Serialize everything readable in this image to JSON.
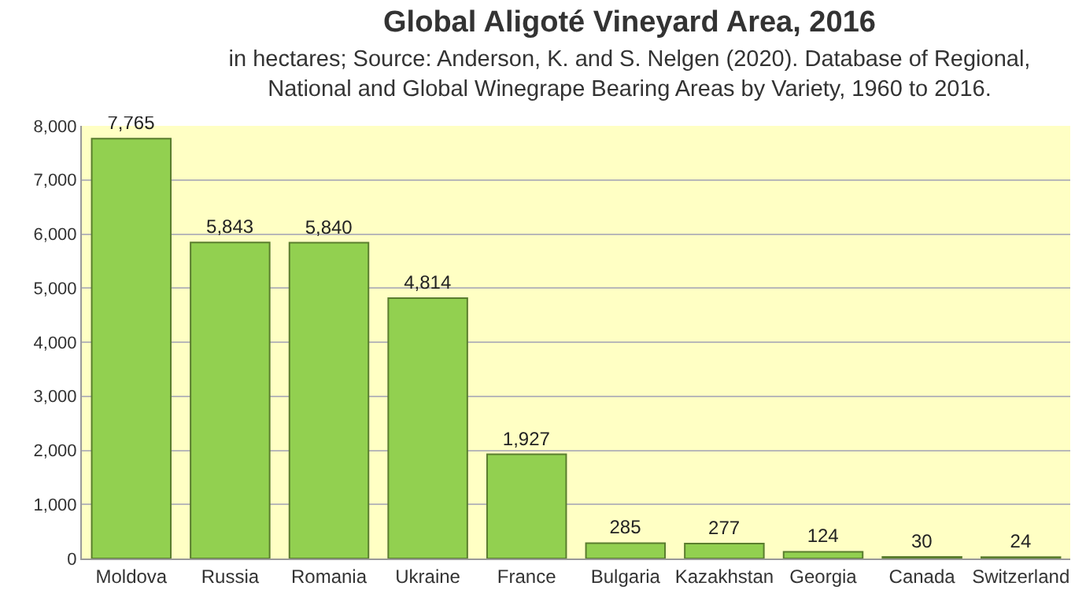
{
  "chart_data": {
    "type": "bar",
    "title": "Global Aligoté Vineyard Area, 2016",
    "subtitle": "in hectares; Source: Anderson, K. and S. Nelgen (2020). Database of Regional, National and Global Winegrape Bearing Areas by Variety, 1960 to 2016.",
    "categories": [
      "Moldova",
      "Russia",
      "Romania",
      "Ukraine",
      "France",
      "Bulgaria",
      "Kazakhstan",
      "Georgia",
      "Canada",
      "Switzerland"
    ],
    "values": [
      7765,
      5843,
      5840,
      4814,
      1927,
      285,
      277,
      124,
      30,
      24
    ],
    "value_labels": [
      "7,765",
      "5,843",
      "5,840",
      "4,814",
      "1,927",
      "285",
      "277",
      "124",
      "30",
      "24"
    ],
    "color": "#92d050",
    "ylim": [
      0,
      8000
    ],
    "yticks": [
      0,
      {
        "value": 1000,
        "label": "1,000"
      },
      {
        "value": 2000,
        "label": "2,000"
      },
      {
        "value": 3000,
        "label": "3,000"
      },
      {
        "value": 4000,
        "label": "4,000"
      },
      {
        "value": 5000,
        "label": "5,000"
      },
      {
        "value": 6000,
        "label": "6,000"
      },
      {
        "value": 7000,
        "label": "7,000"
      },
      {
        "value": 8000,
        "label": "8,000"
      }
    ],
    "grid": "y",
    "legend": false
  }
}
